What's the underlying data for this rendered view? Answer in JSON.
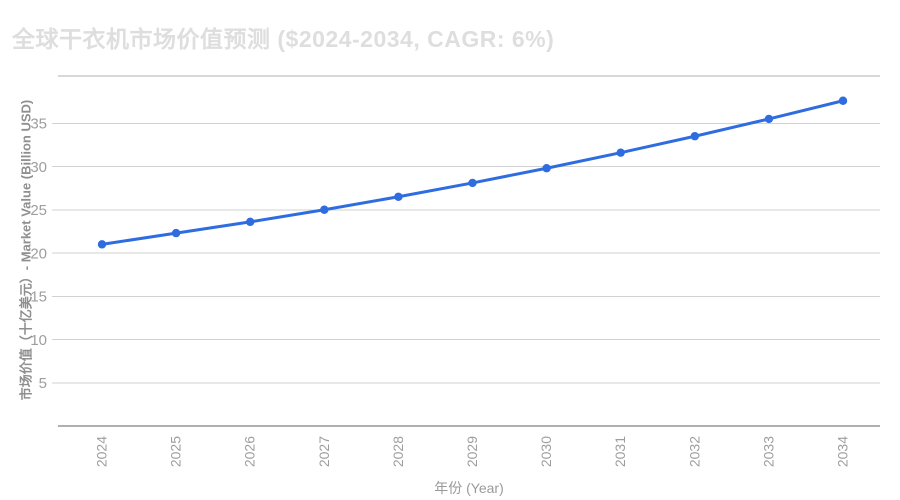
{
  "title": "全球干衣机市场价值预测 ($2024-2034, CAGR: 6%)",
  "colors": {
    "line": "#2e6ce0",
    "point": "#2e6ce0",
    "title_text": "#dedede",
    "tick_text": "#9e9e9e",
    "axis_title_text": "#8f8f8f",
    "grid": "#d2d2d2",
    "axis_line": "#b0b0b0",
    "background": "#ffffff"
  },
  "chart_data": {
    "type": "line",
    "title": "全球干衣机市场价值预测 ($2024-2034, CAGR: 6%)",
    "xlabel": "年份 (Year)",
    "ylabel": "市场价值（十亿美元）- Market Value (Billion USD)",
    "categories": [
      "2024",
      "2025",
      "2026",
      "2027",
      "2028",
      "2029",
      "2030",
      "2031",
      "2032",
      "2033",
      "2034"
    ],
    "series": [
      {
        "name": "Market Value (Billion USD)",
        "values": [
          21.0,
          22.3,
          23.6,
          25.0,
          26.5,
          28.1,
          29.8,
          31.6,
          33.5,
          35.5,
          37.6
        ]
      }
    ],
    "ylim": [
      0,
      40
    ],
    "yticks": [
      5,
      10,
      15,
      20,
      25,
      30,
      35
    ],
    "grid": true,
    "legend": false
  }
}
